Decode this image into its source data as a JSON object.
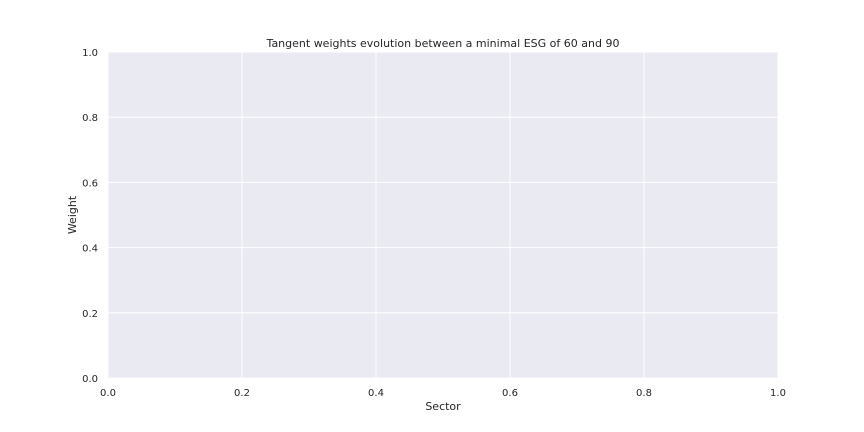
{
  "chart_data": {
    "type": "line",
    "title": "Tangent weights evolution between a minimal ESG of 60 and 90",
    "xlabel": "Sector",
    "ylabel": "Weight",
    "xlim": [
      0.0,
      1.0
    ],
    "ylim": [
      0.0,
      1.0
    ],
    "xticks": [
      "0.0",
      "0.2",
      "0.4",
      "0.6",
      "0.8",
      "1.0"
    ],
    "yticks": [
      "0.0",
      "0.2",
      "0.4",
      "0.6",
      "0.8",
      "1.0"
    ],
    "series": [],
    "grid": true,
    "colors": {
      "plot_background": "#eaeaf2",
      "grid": "#ffffff",
      "text": "#262626"
    }
  }
}
